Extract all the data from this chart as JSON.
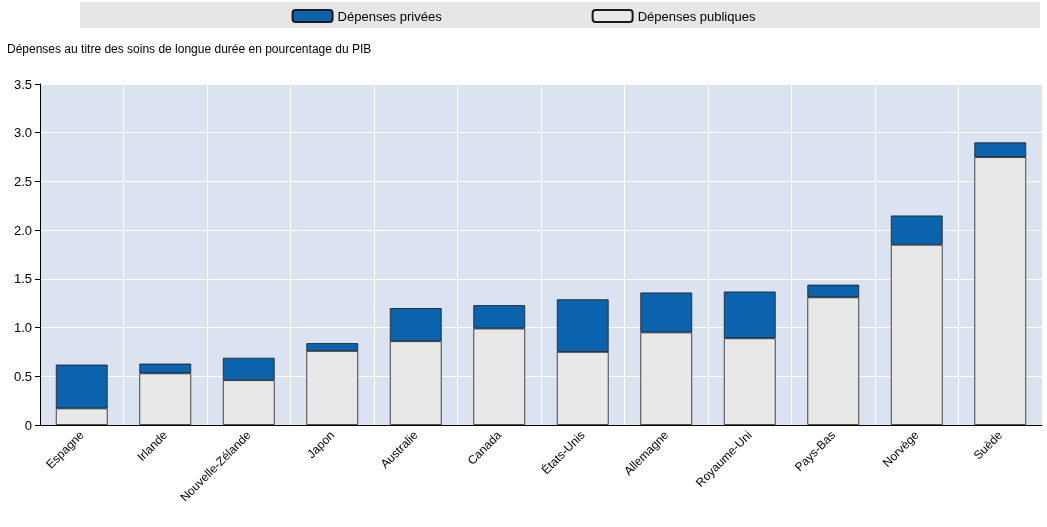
{
  "chart_data": {
    "type": "bar",
    "stacked": true,
    "ylabel": "Dépenses au titre des soins de longue durée en pourcentage du PIB",
    "categories": [
      "Espagne",
      "Irlande",
      "Nouvelle-Zélande",
      "Japon",
      "Australie",
      "Canada",
      "États-Unis",
      "Allemagne",
      "Royaume-Uni",
      "Pays-Bas",
      "Norvège",
      "Suède"
    ],
    "series": [
      {
        "name": "Dépenses publiques",
        "color": "#e8e8e8",
        "values": [
          0.17,
          0.53,
          0.46,
          0.76,
          0.86,
          0.99,
          0.75,
          0.95,
          0.89,
          1.31,
          1.85,
          2.75
        ]
      },
      {
        "name": "Dépenses privées",
        "color": "#0b63ad",
        "values": [
          0.45,
          0.1,
          0.23,
          0.08,
          0.34,
          0.24,
          0.54,
          0.41,
          0.48,
          0.13,
          0.3,
          0.15
        ]
      }
    ],
    "ylim": [
      0,
      3.5
    ],
    "yticks": [
      0,
      {
        "value": 0.5,
        "label": "0.5"
      },
      {
        "value": 1,
        "label": "1.0"
      },
      {
        "value": 1.5,
        "label": "1.5"
      },
      {
        "value": 2,
        "label": "2.0"
      },
      {
        "value": 2.5,
        "label": "2.5"
      },
      {
        "value": 3,
        "label": "3.0"
      },
      {
        "value": 3.5,
        "label": "3.5"
      }
    ],
    "grid": true,
    "legend": "top"
  }
}
